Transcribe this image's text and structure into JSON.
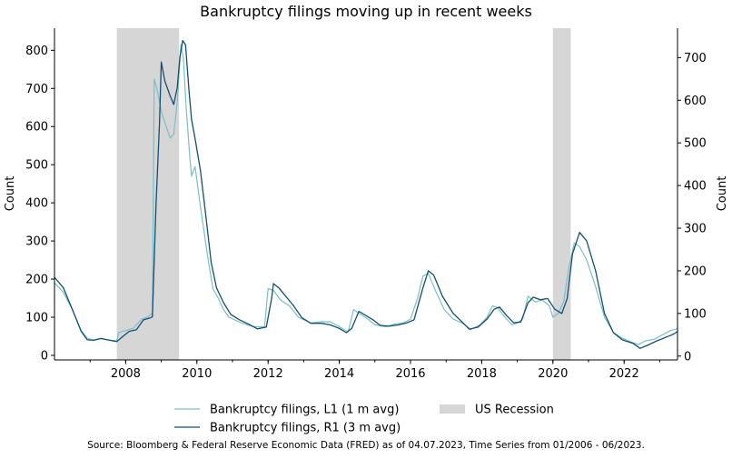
{
  "chart_data": {
    "type": "line",
    "title": "Bankruptcy filings moving up in recent weeks",
    "left_axis": {
      "label": "Count",
      "ylim": [
        -12,
        858
      ],
      "ticks": [
        0,
        100,
        200,
        300,
        400,
        500,
        600,
        700,
        800
      ]
    },
    "right_axis": {
      "label": "Count",
      "ylim": [
        -9,
        769
      ],
      "ticks": [
        0,
        100,
        200,
        300,
        400,
        500,
        600,
        700
      ]
    },
    "x_axis": {
      "xlim": [
        2006.0,
        2023.5
      ],
      "ticks": [
        "2008",
        "2010",
        "2012",
        "2014",
        "2016",
        "2018",
        "2020",
        "2022"
      ]
    },
    "recessions": [
      {
        "name": "US Recession",
        "start": 2007.75,
        "end": 2009.5
      },
      {
        "name": "US Recession",
        "start": 2020.0,
        "end": 2020.5
      }
    ],
    "series": [
      {
        "name": "Bankruptcy filings, L1 (1 m avg)",
        "axis": "left",
        "color": "#7bbfc7",
        "points": [
          [
            2006.0,
            190
          ],
          [
            2006.25,
            165
          ],
          [
            2006.5,
            120
          ],
          [
            2006.75,
            65
          ],
          [
            2006.92,
            45
          ],
          [
            2007.1,
            40
          ],
          [
            2007.3,
            45
          ],
          [
            2007.55,
            40
          ],
          [
            2007.75,
            38
          ],
          [
            2007.8,
            60
          ],
          [
            2008.0,
            65
          ],
          [
            2008.2,
            70
          ],
          [
            2008.45,
            95
          ],
          [
            2008.6,
            100
          ],
          [
            2008.75,
            110
          ],
          [
            2008.8,
            725
          ],
          [
            2008.9,
            690
          ],
          [
            2009.0,
            640
          ],
          [
            2009.1,
            610
          ],
          [
            2009.25,
            570
          ],
          [
            2009.35,
            580
          ],
          [
            2009.45,
            665
          ],
          [
            2009.55,
            815
          ],
          [
            2009.62,
            780
          ],
          [
            2009.7,
            650
          ],
          [
            2009.8,
            520
          ],
          [
            2009.85,
            470
          ],
          [
            2009.95,
            495
          ],
          [
            2010.1,
            390
          ],
          [
            2010.3,
            260
          ],
          [
            2010.45,
            175
          ],
          [
            2010.6,
            150
          ],
          [
            2010.75,
            120
          ],
          [
            2010.9,
            100
          ],
          [
            2011.25,
            85
          ],
          [
            2011.6,
            75
          ],
          [
            2011.9,
            75
          ],
          [
            2012.0,
            175
          ],
          [
            2012.15,
            170
          ],
          [
            2012.35,
            145
          ],
          [
            2012.6,
            130
          ],
          [
            2012.85,
            100
          ],
          [
            2013.2,
            85
          ],
          [
            2013.5,
            88
          ],
          [
            2013.75,
            88
          ],
          [
            2014.0,
            75
          ],
          [
            2014.25,
            62
          ],
          [
            2014.4,
            120
          ],
          [
            2014.6,
            108
          ],
          [
            2014.8,
            95
          ],
          [
            2015.0,
            80
          ],
          [
            2015.3,
            75
          ],
          [
            2015.55,
            82
          ],
          [
            2015.8,
            85
          ],
          [
            2016.0,
            95
          ],
          [
            2016.2,
            150
          ],
          [
            2016.35,
            208
          ],
          [
            2016.5,
            215
          ],
          [
            2016.7,
            170
          ],
          [
            2016.95,
            120
          ],
          [
            2017.2,
            95
          ],
          [
            2017.45,
            85
          ],
          [
            2017.7,
            68
          ],
          [
            2017.95,
            80
          ],
          [
            2018.15,
            100
          ],
          [
            2018.3,
            130
          ],
          [
            2018.45,
            125
          ],
          [
            2018.65,
            100
          ],
          [
            2018.85,
            80
          ],
          [
            2019.0,
            85
          ],
          [
            2019.15,
            95
          ],
          [
            2019.3,
            155
          ],
          [
            2019.5,
            140
          ],
          [
            2019.7,
            145
          ],
          [
            2019.9,
            130
          ],
          [
            2020.0,
            100
          ],
          [
            2020.15,
            110
          ],
          [
            2020.3,
            140
          ],
          [
            2020.45,
            230
          ],
          [
            2020.6,
            295
          ],
          [
            2020.75,
            285
          ],
          [
            2020.95,
            250
          ],
          [
            2021.2,
            180
          ],
          [
            2021.45,
            100
          ],
          [
            2021.7,
            60
          ],
          [
            2021.95,
            45
          ],
          [
            2022.2,
            35
          ],
          [
            2022.4,
            28
          ],
          [
            2022.6,
            38
          ],
          [
            2022.85,
            42
          ],
          [
            2023.1,
            55
          ],
          [
            2023.3,
            65
          ],
          [
            2023.5,
            70
          ]
        ]
      },
      {
        "name": "Bankruptcy filings, R1 (3 m avg)",
        "axis": "right",
        "color": "#134f77",
        "points": [
          [
            2006.0,
            185
          ],
          [
            2006.25,
            160
          ],
          [
            2006.5,
            110
          ],
          [
            2006.75,
            58
          ],
          [
            2006.92,
            38
          ],
          [
            2007.1,
            37
          ],
          [
            2007.3,
            41
          ],
          [
            2007.55,
            37
          ],
          [
            2007.75,
            34
          ],
          [
            2007.95,
            48
          ],
          [
            2008.1,
            58
          ],
          [
            2008.3,
            62
          ],
          [
            2008.5,
            85
          ],
          [
            2008.7,
            90
          ],
          [
            2008.75,
            92
          ],
          [
            2008.85,
            350
          ],
          [
            2008.95,
            545
          ],
          [
            2009.0,
            690
          ],
          [
            2009.1,
            645
          ],
          [
            2009.25,
            610
          ],
          [
            2009.35,
            590
          ],
          [
            2009.45,
            630
          ],
          [
            2009.52,
            700
          ],
          [
            2009.6,
            740
          ],
          [
            2009.68,
            730
          ],
          [
            2009.78,
            620
          ],
          [
            2009.85,
            555
          ],
          [
            2009.95,
            510
          ],
          [
            2010.1,
            435
          ],
          [
            2010.25,
            330
          ],
          [
            2010.4,
            220
          ],
          [
            2010.55,
            160
          ],
          [
            2010.75,
            125
          ],
          [
            2010.95,
            98
          ],
          [
            2011.2,
            85
          ],
          [
            2011.45,
            75
          ],
          [
            2011.7,
            64
          ],
          [
            2011.95,
            68
          ],
          [
            2012.1,
            135
          ],
          [
            2012.15,
            170
          ],
          [
            2012.3,
            160
          ],
          [
            2012.45,
            145
          ],
          [
            2012.7,
            120
          ],
          [
            2012.95,
            90
          ],
          [
            2013.2,
            77
          ],
          [
            2013.5,
            77
          ],
          [
            2013.75,
            73
          ],
          [
            2014.0,
            65
          ],
          [
            2014.2,
            55
          ],
          [
            2014.35,
            65
          ],
          [
            2014.55,
            105
          ],
          [
            2014.75,
            95
          ],
          [
            2014.95,
            85
          ],
          [
            2015.15,
            72
          ],
          [
            2015.4,
            70
          ],
          [
            2015.65,
            73
          ],
          [
            2015.9,
            78
          ],
          [
            2016.1,
            85
          ],
          [
            2016.35,
            160
          ],
          [
            2016.5,
            200
          ],
          [
            2016.65,
            190
          ],
          [
            2016.9,
            140
          ],
          [
            2017.2,
            100
          ],
          [
            2017.45,
            80
          ],
          [
            2017.65,
            63
          ],
          [
            2017.9,
            68
          ],
          [
            2018.15,
            87
          ],
          [
            2018.35,
            110
          ],
          [
            2018.5,
            115
          ],
          [
            2018.7,
            95
          ],
          [
            2018.9,
            78
          ],
          [
            2019.1,
            80
          ],
          [
            2019.3,
            125
          ],
          [
            2019.45,
            138
          ],
          [
            2019.65,
            132
          ],
          [
            2019.85,
            135
          ],
          [
            2020.05,
            110
          ],
          [
            2020.25,
            100
          ],
          [
            2020.4,
            135
          ],
          [
            2020.55,
            240
          ],
          [
            2020.75,
            290
          ],
          [
            2020.95,
            270
          ],
          [
            2021.2,
            200
          ],
          [
            2021.45,
            100
          ],
          [
            2021.7,
            55
          ],
          [
            2021.95,
            38
          ],
          [
            2022.25,
            30
          ],
          [
            2022.45,
            18
          ],
          [
            2022.65,
            25
          ],
          [
            2022.9,
            35
          ],
          [
            2023.2,
            45
          ],
          [
            2023.4,
            52
          ],
          [
            2023.5,
            58
          ]
        ]
      }
    ],
    "legend": {
      "placement": "bottom",
      "items": [
        "Bankruptcy filings, L1 (1 m avg)",
        "Bankruptcy filings, R1 (3 m avg)",
        "US Recession"
      ]
    },
    "source": "Source: Bloomberg & Federal Reserve Economic Data (FRED) as of 04.07.2023, Time Series from 01/2006 - 06/2023."
  }
}
